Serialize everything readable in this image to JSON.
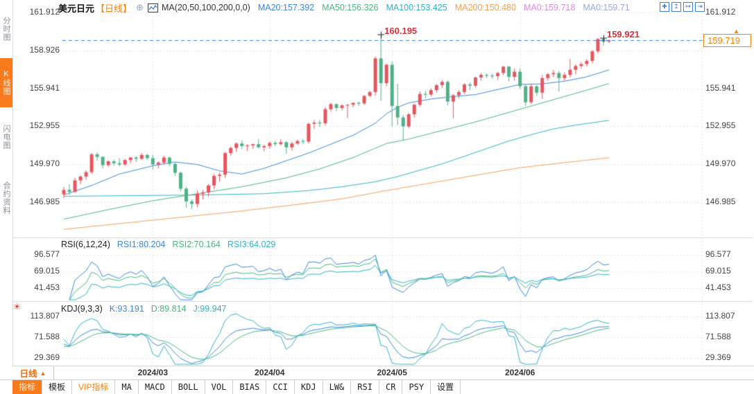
{
  "header": {
    "symbol": "美元日元",
    "period_tag": "【日线】",
    "add_icon": "⊕",
    "ma_params": "MA(20,50,100,200,0,0)",
    "ma_values": [
      {
        "label": "MA20:157.392",
        "color": "#3b86e0"
      },
      {
        "label": "MA50:156.326",
        "color": "#47b97e"
      },
      {
        "label": "MA100:153.425",
        "color": "#2fb3c9"
      },
      {
        "label": "MA200:150.480",
        "color": "#f6a054"
      },
      {
        "label": "MA0:159.718",
        "color": "#e08ae4"
      },
      {
        "label": "MA0:159.71",
        "color": "#9aa7e8"
      }
    ]
  },
  "toolbar_icons": [
    {
      "name": "crosshair-icon",
      "glyph": "✚"
    },
    {
      "name": "pane-up-icon",
      "glyph": "↥"
    },
    {
      "name": "pane-right-icon",
      "glyph": "↦"
    },
    {
      "name": "exit-chart-icon",
      "glyph": "⇥"
    }
  ],
  "sidebar": {
    "tabs": [
      {
        "label": "分时图",
        "active": false
      },
      {
        "label": "K线图",
        "active": true
      },
      {
        "label": "闪电图",
        "active": false
      },
      {
        "label": "合约资料",
        "active": false
      }
    ]
  },
  "main_chart": {
    "left_ticks": [
      "161.912",
      "158.926",
      "155.941",
      "152.955",
      "149.970",
      "146.985"
    ],
    "left_tick_values": [
      161.912,
      158.926,
      155.941,
      152.955,
      149.97,
      146.985
    ],
    "right_ticks": [
      "161.912",
      "155.941",
      "152.955",
      "149.970",
      "146.985"
    ],
    "right_tick_values": [
      161.912,
      155.941,
      152.955,
      149.97,
      146.985
    ],
    "price_line": {
      "label": "159.719",
      "value": 159.719,
      "arrow": "▲"
    }
  },
  "rsi_panel": {
    "title": "RSI(6,12,24)",
    "periods": [
      6,
      12,
      24
    ],
    "values": [
      {
        "label": "RSI1:80.204",
        "color": "#3b86e0"
      },
      {
        "label": "RSI2:70.164",
        "color": "#47b97e"
      },
      {
        "label": "RSI3:64.029",
        "color": "#2fb3c9"
      }
    ],
    "ticks": [
      "96.577",
      "69.015",
      "41.453"
    ],
    "tick_values": [
      96.577,
      69.015,
      41.453
    ]
  },
  "kdj_panel": {
    "title": "KDJ(9,3,3)",
    "params": [
      9,
      3,
      3
    ],
    "hot_icon": "☀",
    "values": [
      {
        "label": "K:93.191",
        "color": "#3b86e0"
      },
      {
        "label": "D:89.814",
        "color": "#47b97e"
      },
      {
        "label": "J:99.947",
        "color": "#2fb3c9"
      }
    ],
    "ticks": [
      "113.807",
      "71.588",
      "29.369"
    ],
    "tick_values": [
      113.807,
      71.588,
      29.369
    ]
  },
  "x_axis": {
    "period_label": "日线",
    "period_arrow": "▲",
    "months": [
      {
        "label": "2024/03",
        "index": 16
      },
      {
        "label": "2024/04",
        "index": 37
      },
      {
        "label": "2024/05",
        "index": 59
      },
      {
        "label": "2024/06",
        "index": 82
      }
    ]
  },
  "bottom_tabs": [
    {
      "label": "指标",
      "style": "active"
    },
    {
      "label": "模板",
      "style": "normal"
    },
    {
      "label": "VIP指标",
      "style": "vip"
    },
    {
      "label": "MA",
      "style": "mono"
    },
    {
      "label": "MACD",
      "style": "mono"
    },
    {
      "label": "BOLL",
      "style": "mono"
    },
    {
      "label": "VOL",
      "style": "mono"
    },
    {
      "label": "BIAS",
      "style": "mono"
    },
    {
      "label": "CCI",
      "style": "mono"
    },
    {
      "label": "KDJ",
      "style": "mono"
    },
    {
      "label": "LW&",
      "style": "mono"
    },
    {
      "label": "RSI",
      "style": "mono"
    },
    {
      "label": "CR",
      "style": "mono"
    },
    {
      "label": "PSY",
      "style": "mono"
    },
    {
      "label": "设置",
      "style": "normal"
    }
  ],
  "chart_data": {
    "type": "candlestick",
    "title": "美元日元 日线 (USD/JPY daily)",
    "ylim": [
      146.985,
      161.912
    ],
    "last_price": 159.719,
    "colors": {
      "up": "#e6565f",
      "down": "#4fb286",
      "grid": "#e4e4e8",
      "price_line": "#2f7fe8"
    },
    "high_annotations": [
      {
        "text": "160.195",
        "index": 57,
        "value": 160.195
      },
      {
        "text": "159.921",
        "index": 97,
        "value": 159.921
      }
    ],
    "candles": [
      [
        147.6,
        148.2,
        147.3,
        147.95
      ],
      [
        147.95,
        148.4,
        147.55,
        147.8
      ],
      [
        147.8,
        148.9,
        147.7,
        148.7
      ],
      [
        148.7,
        149.1,
        148.4,
        149.0
      ],
      [
        149.0,
        149.5,
        148.75,
        149.35
      ],
      [
        149.35,
        150.85,
        149.2,
        150.75
      ],
      [
        150.75,
        150.9,
        150.25,
        150.55
      ],
      [
        150.55,
        150.6,
        149.65,
        149.9
      ],
      [
        149.9,
        150.3,
        149.75,
        150.2
      ],
      [
        150.2,
        150.35,
        149.85,
        150.05
      ],
      [
        150.05,
        150.45,
        149.8,
        149.95
      ],
      [
        149.95,
        150.4,
        149.85,
        150.3
      ],
      [
        150.3,
        150.55,
        150.05,
        150.5
      ],
      [
        150.5,
        150.6,
        150.15,
        150.4
      ],
      [
        150.4,
        150.85,
        150.3,
        150.7
      ],
      [
        150.7,
        150.8,
        150.3,
        150.45
      ],
      [
        150.45,
        150.7,
        149.55,
        149.95
      ],
      [
        149.95,
        150.2,
        149.65,
        150.1
      ],
      [
        150.1,
        150.65,
        149.95,
        150.5
      ],
      [
        150.5,
        150.55,
        149.8,
        150.0
      ],
      [
        150.0,
        150.1,
        149.05,
        149.3
      ],
      [
        149.3,
        149.4,
        147.85,
        148.05
      ],
      [
        148.05,
        148.2,
        146.55,
        147.05
      ],
      [
        147.05,
        147.2,
        146.45,
        146.85
      ],
      [
        146.85,
        147.9,
        146.6,
        147.65
      ],
      [
        147.65,
        147.95,
        147.2,
        147.75
      ],
      [
        147.75,
        148.4,
        147.45,
        148.3
      ],
      [
        148.3,
        149.2,
        148.0,
        149.05
      ],
      [
        149.05,
        149.35,
        148.6,
        149.15
      ],
      [
        149.15,
        150.95,
        148.9,
        150.85
      ],
      [
        150.85,
        151.35,
        150.65,
        151.25
      ],
      [
        151.25,
        151.7,
        150.95,
        151.6
      ],
      [
        151.6,
        151.85,
        151.15,
        151.4
      ],
      [
        151.4,
        151.55,
        151.0,
        151.45
      ],
      [
        151.45,
        151.6,
        151.2,
        151.55
      ],
      [
        151.55,
        151.95,
        151.25,
        151.3
      ],
      [
        151.3,
        151.5,
        151.0,
        151.4
      ],
      [
        151.4,
        151.75,
        151.2,
        151.65
      ],
      [
        151.65,
        151.8,
        151.4,
        151.55
      ],
      [
        151.55,
        151.95,
        151.45,
        151.7
      ],
      [
        151.7,
        151.8,
        150.8,
        151.3
      ],
      [
        151.3,
        151.75,
        151.05,
        151.6
      ],
      [
        151.6,
        151.9,
        151.5,
        151.8
      ],
      [
        151.8,
        151.95,
        151.55,
        151.75
      ],
      [
        151.75,
        153.25,
        151.6,
        153.15
      ],
      [
        153.15,
        153.45,
        152.75,
        153.25
      ],
      [
        153.25,
        153.45,
        152.9,
        153.2
      ],
      [
        153.2,
        154.45,
        153.0,
        154.3
      ],
      [
        154.3,
        154.8,
        154.1,
        154.7
      ],
      [
        154.7,
        154.75,
        154.15,
        154.4
      ],
      [
        154.4,
        154.7,
        154.2,
        154.6
      ],
      [
        154.6,
        154.7,
        153.6,
        154.65
      ],
      [
        154.65,
        154.85,
        154.45,
        154.8
      ],
      [
        154.8,
        154.9,
        154.55,
        154.75
      ],
      [
        154.75,
        155.4,
        154.65,
        155.35
      ],
      [
        155.35,
        155.75,
        155.25,
        155.65
      ],
      [
        155.65,
        158.45,
        155.35,
        158.3
      ],
      [
        158.3,
        160.195,
        154.95,
        156.35
      ],
      [
        156.35,
        157.9,
        156.1,
        157.8
      ],
      [
        157.8,
        158.05,
        152.95,
        154.55
      ],
      [
        154.55,
        156.3,
        153.05,
        153.65
      ],
      [
        153.65,
        153.85,
        151.85,
        152.95
      ],
      [
        152.95,
        154.0,
        152.8,
        153.9
      ],
      [
        153.9,
        154.75,
        153.65,
        154.65
      ],
      [
        154.65,
        155.7,
        154.5,
        155.5
      ],
      [
        155.5,
        155.75,
        155.15,
        155.45
      ],
      [
        155.45,
        155.95,
        155.3,
        155.8
      ],
      [
        155.8,
        156.25,
        155.6,
        156.2
      ],
      [
        156.2,
        156.6,
        155.95,
        156.45
      ],
      [
        156.45,
        156.55,
        154.6,
        154.9
      ],
      [
        154.9,
        155.5,
        153.6,
        155.4
      ],
      [
        155.4,
        155.8,
        155.15,
        155.65
      ],
      [
        155.65,
        156.35,
        155.5,
        156.25
      ],
      [
        156.25,
        156.4,
        155.8,
        156.15
      ],
      [
        156.15,
        156.85,
        156.0,
        156.8
      ],
      [
        156.8,
        157.15,
        156.55,
        157.0
      ],
      [
        157.0,
        157.1,
        156.75,
        156.95
      ],
      [
        156.95,
        157.1,
        156.7,
        156.9
      ],
      [
        156.9,
        157.25,
        156.6,
        157.15
      ],
      [
        157.15,
        157.7,
        157.0,
        157.65
      ],
      [
        157.65,
        157.7,
        156.5,
        156.85
      ],
      [
        156.85,
        157.5,
        156.55,
        157.25
      ],
      [
        157.25,
        157.5,
        155.9,
        156.1
      ],
      [
        156.1,
        156.25,
        154.55,
        154.85
      ],
      [
        154.85,
        156.3,
        154.7,
        156.1
      ],
      [
        156.1,
        156.2,
        155.35,
        155.6
      ],
      [
        155.6,
        157.0,
        155.1,
        156.75
      ],
      [
        156.75,
        157.15,
        156.55,
        157.05
      ],
      [
        157.05,
        157.4,
        156.8,
        157.15
      ],
      [
        157.15,
        157.3,
        155.7,
        156.75
      ],
      [
        156.75,
        157.2,
        156.55,
        157.0
      ],
      [
        157.0,
        158.25,
        156.8,
        157.4
      ],
      [
        157.4,
        157.85,
        157.05,
        157.7
      ],
      [
        157.7,
        158.0,
        157.5,
        157.85
      ],
      [
        157.85,
        158.25,
        157.65,
        158.1
      ],
      [
        158.1,
        158.95,
        157.9,
        158.85
      ],
      [
        158.85,
        159.9,
        158.7,
        159.82
      ],
      [
        159.82,
        159.921,
        159.3,
        159.62
      ],
      [
        159.62,
        159.8,
        159.5,
        159.719
      ]
    ],
    "ma_overlays": [
      {
        "name": "MA20",
        "color": "#3b86e0",
        "points": [
          [
            0,
            147.55
          ],
          [
            5,
            148.3
          ],
          [
            10,
            149.2
          ],
          [
            16,
            149.85
          ],
          [
            20,
            150.15
          ],
          [
            24,
            149.95
          ],
          [
            28,
            149.45
          ],
          [
            32,
            149.2
          ],
          [
            36,
            149.65
          ],
          [
            40,
            150.25
          ],
          [
            44,
            150.85
          ],
          [
            48,
            151.55
          ],
          [
            52,
            152.25
          ],
          [
            56,
            153.2
          ],
          [
            58,
            153.95
          ],
          [
            60,
            154.45
          ],
          [
            62,
            154.8
          ],
          [
            66,
            155.1
          ],
          [
            70,
            155.3
          ],
          [
            74,
            155.45
          ],
          [
            78,
            155.85
          ],
          [
            82,
            156.25
          ],
          [
            86,
            156.3
          ],
          [
            90,
            156.5
          ],
          [
            94,
            156.85
          ],
          [
            98,
            157.392
          ]
        ]
      },
      {
        "name": "MA50",
        "color": "#47b97e",
        "points": [
          [
            0,
            145.65
          ],
          [
            8,
            146.4
          ],
          [
            16,
            147.1
          ],
          [
            24,
            147.65
          ],
          [
            32,
            148.2
          ],
          [
            40,
            148.9
          ],
          [
            46,
            149.6
          ],
          [
            52,
            150.5
          ],
          [
            58,
            151.6
          ],
          [
            62,
            151.95
          ],
          [
            66,
            152.4
          ],
          [
            70,
            152.85
          ],
          [
            74,
            153.3
          ],
          [
            78,
            153.8
          ],
          [
            82,
            154.3
          ],
          [
            86,
            154.8
          ],
          [
            90,
            155.3
          ],
          [
            94,
            155.8
          ],
          [
            98,
            156.326
          ]
        ]
      },
      {
        "name": "MA100",
        "color": "#2fb3c9",
        "points": [
          [
            0,
            147.45
          ],
          [
            12,
            147.5
          ],
          [
            24,
            147.55
          ],
          [
            36,
            147.65
          ],
          [
            44,
            147.9
          ],
          [
            50,
            148.2
          ],
          [
            56,
            148.6
          ],
          [
            60,
            149.0
          ],
          [
            64,
            149.5
          ],
          [
            68,
            150.0
          ],
          [
            72,
            150.6
          ],
          [
            76,
            151.2
          ],
          [
            80,
            151.8
          ],
          [
            84,
            152.3
          ],
          [
            88,
            152.75
          ],
          [
            92,
            153.05
          ],
          [
            98,
            153.425
          ]
        ]
      },
      {
        "name": "MA200",
        "color": "#f6a054",
        "points": [
          [
            0,
            144.85
          ],
          [
            10,
            145.3
          ],
          [
            20,
            145.75
          ],
          [
            30,
            146.2
          ],
          [
            40,
            146.7
          ],
          [
            50,
            147.25
          ],
          [
            58,
            147.9
          ],
          [
            66,
            148.5
          ],
          [
            74,
            149.1
          ],
          [
            82,
            149.7
          ],
          [
            90,
            150.1
          ],
          [
            98,
            150.48
          ]
        ]
      }
    ],
    "indicators": {
      "rsi": {
        "periods": [
          6,
          12,
          24
        ],
        "colors": [
          "#3b86e0",
          "#47b97e",
          "#2fb3c9"
        ],
        "ylim_ticks": [
          96.577,
          69.015,
          41.453
        ]
      },
      "kdj": {
        "params": [
          9,
          3,
          3
        ],
        "colors": [
          "#3b86e0",
          "#47b97e",
          "#2fb3c9"
        ],
        "ylim_ticks": [
          113.807,
          71.588,
          29.369
        ]
      }
    }
  }
}
